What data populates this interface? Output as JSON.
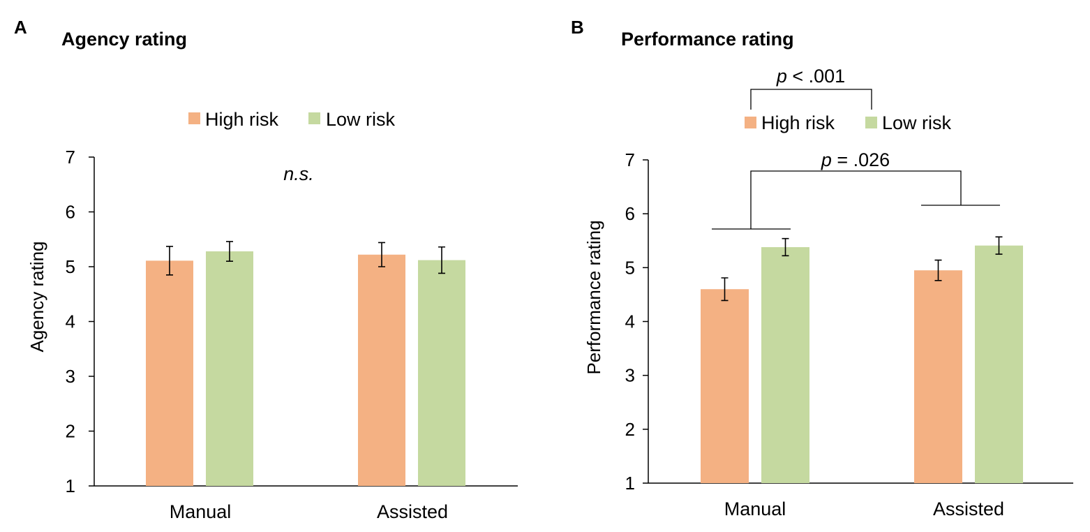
{
  "chart_data": [
    {
      "panel": "A",
      "type": "bar",
      "title": "Agency rating",
      "ylabel": "Agency rating",
      "xlabel": "",
      "ylim": [
        1,
        7
      ],
      "yticks": [
        "1",
        "2",
        "3",
        "4",
        "5",
        "6",
        "7"
      ],
      "categories": [
        "Manual",
        "Assisted"
      ],
      "legend": [
        {
          "name": "High risk",
          "color": "#f4b183"
        },
        {
          "name": "Low risk",
          "color": "#c5d9a0"
        }
      ],
      "series": [
        {
          "name": "High risk",
          "color": "#f4b183",
          "values": [
            5.11,
            5.22
          ],
          "errors": [
            0.26,
            0.22
          ]
        },
        {
          "name": "Low risk",
          "color": "#c5d9a0",
          "values": [
            5.28,
            5.12
          ],
          "errors": [
            0.18,
            0.24
          ]
        }
      ],
      "annotations": [
        {
          "text": "n.s.",
          "italic": true
        }
      ]
    },
    {
      "panel": "B",
      "type": "bar",
      "title": "Performance rating",
      "ylabel": "Performance rating",
      "xlabel": "",
      "ylim": [
        1,
        7
      ],
      "yticks": [
        "1",
        "2",
        "3",
        "4",
        "5",
        "6",
        "7"
      ],
      "categories": [
        "Manual",
        "Assisted"
      ],
      "legend": [
        {
          "name": "High risk",
          "color": "#f4b183"
        },
        {
          "name": "Low risk",
          "color": "#c5d9a0"
        }
      ],
      "series": [
        {
          "name": "High risk",
          "color": "#f4b183",
          "values": [
            4.6,
            4.95
          ],
          "errors": [
            0.21,
            0.19
          ]
        },
        {
          "name": "Low risk",
          "color": "#c5d9a0",
          "values": [
            5.38,
            5.41
          ],
          "errors": [
            0.16,
            0.16
          ]
        }
      ],
      "annotations": [
        {
          "italic_part": "p",
          "rest": " < .001",
          "between": "High risk vs Low risk"
        },
        {
          "italic_part": "p",
          "rest": " = .026",
          "between": "Manual vs Assisted"
        }
      ]
    }
  ]
}
